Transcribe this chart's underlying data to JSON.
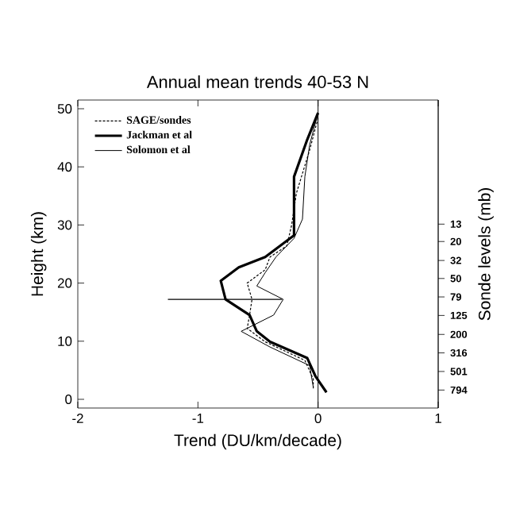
{
  "chart_data": {
    "type": "line",
    "title": "Annual mean trends 40-53 N",
    "xlabel": "Trend (DU/km/decade)",
    "ylabel": "Height (km)",
    "y2label": "Sonde levels (mb)",
    "xlim": [
      -2,
      1
    ],
    "xticks": [
      -2,
      -1,
      0,
      1
    ],
    "ylim": [
      -1.5,
      51.5
    ],
    "yticks": [
      0,
      10,
      20,
      30,
      40,
      50
    ],
    "y2lim": [
      1240,
      0.6
    ],
    "y2ticks": [
      13,
      20,
      32,
      50,
      79,
      125,
      200,
      316,
      501,
      794
    ],
    "log": "y2",
    "legend": "top left",
    "marker": "none",
    "grid": false,
    "ref_lines": [
      {
        "axis": "x",
        "value": 0
      }
    ],
    "series": [
      {
        "name": "SAGE/sondes",
        "color": "#000000",
        "line_style": "dashed",
        "x": [
          0,
          -0.07,
          -0.18,
          -0.22,
          -0.26,
          -0.4,
          -0.44,
          -0.59,
          -0.55,
          -0.57,
          -0.59,
          -0.44,
          -0.11,
          -0.04,
          -0.04
        ],
        "values": [
          48.4,
          42.9,
          35.5,
          30.0,
          26.4,
          24.5,
          22.3,
          20.0,
          17.2,
          14.5,
          12.2,
          9.9,
          6.7,
          3.5,
          1.6
        ],
        "xerrors": [
          null,
          null,
          null,
          null,
          null,
          null,
          null,
          null,
          [
            -1.25,
            -0.3
          ],
          null,
          null,
          null,
          null,
          null,
          null
        ]
      },
      {
        "name": "Jackman et al",
        "color": "#000000",
        "line_style": "solid",
        "x": [
          0,
          -0.09,
          -0.2,
          -0.2,
          -0.44,
          -0.66,
          -0.81,
          -0.77,
          -0.57,
          -0.51,
          -0.4,
          -0.09,
          -0.02,
          0.07
        ],
        "values": [
          49.3,
          44.7,
          38.3,
          28.2,
          24.5,
          22.7,
          20.4,
          17.2,
          14.5,
          11.7,
          9.9,
          7.1,
          3.9,
          1.2
        ]
      },
      {
        "name": "Solomon et al",
        "color": "#000000",
        "line_style": "solid",
        "x": [
          0,
          -0.07,
          -0.11,
          -0.13,
          -0.2,
          -0.35,
          -0.44,
          -0.51,
          -0.29,
          -0.37,
          -0.64,
          -0.4,
          -0.07,
          -0.04
        ],
        "values": [
          49.3,
          43.8,
          38.3,
          31.0,
          27.7,
          24.5,
          21.8,
          19.5,
          17.2,
          14.5,
          11.7,
          9.0,
          5.8,
          2.1
        ]
      }
    ]
  }
}
